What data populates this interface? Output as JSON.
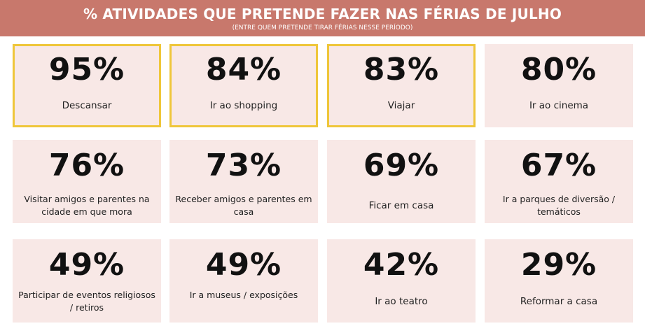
{
  "header": {
    "title": "% ATIVIDADES QUE PRETENDE FAZER NAS FÉRIAS DE JULHO",
    "subtitle": "(ENTRE QUEM PRETENDE TIRAR FÉRIAS NESSE PERÍODO)"
  },
  "colors": {
    "header_bg": "#c8786c",
    "card_bg": "#f8e8e6",
    "highlight_border": "#efc63a"
  },
  "chart_data": {
    "type": "table",
    "title": "% ATIVIDADES QUE PRETENDE FAZER NAS FÉRIAS DE JULHO",
    "subtitle": "(ENTRE QUEM PRETENDE TIRAR FÉRIAS NESSE PERÍODO)",
    "items": [
      {
        "value": "95%",
        "label": "Descansar",
        "highlight": true
      },
      {
        "value": "84%",
        "label": "Ir ao shopping",
        "highlight": true
      },
      {
        "value": "83%",
        "label": "Viajar",
        "highlight": true
      },
      {
        "value": "80%",
        "label": "Ir ao cinema",
        "highlight": false
      },
      {
        "value": "76%",
        "label": "Visitar amigos e parentes na cidade em que mora",
        "highlight": false
      },
      {
        "value": "73%",
        "label": "Receber amigos e parentes em casa",
        "highlight": false
      },
      {
        "value": "69%",
        "label": "Ficar em casa",
        "highlight": false
      },
      {
        "value": "67%",
        "label": "Ir a parques de diversão / temáticos",
        "highlight": false
      },
      {
        "value": "49%",
        "label": "Participar de eventos religiosos / retiros",
        "highlight": false
      },
      {
        "value": "49%",
        "label": "Ir a museus / exposições",
        "highlight": false
      },
      {
        "value": "42%",
        "label": "Ir ao teatro",
        "highlight": false
      },
      {
        "value": "29%",
        "label": "Reformar a casa",
        "highlight": false
      }
    ]
  }
}
